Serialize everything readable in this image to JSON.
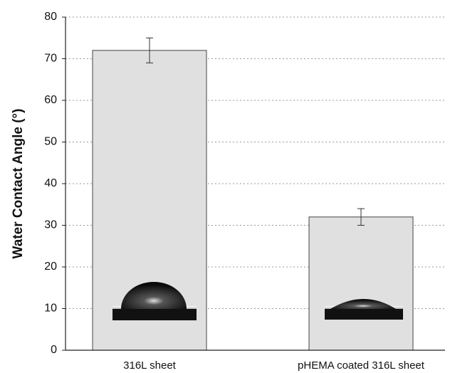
{
  "chart_data": {
    "type": "bar",
    "y_label": "Water Contact Angle (°)",
    "categories": [
      "316L sheet",
      "pHEMA coated 316L sheet"
    ],
    "values": [
      72,
      32
    ],
    "errors": [
      3,
      2
    ],
    "color": "#e0e0e0",
    "ylim": [
      0,
      80
    ],
    "yticks": [
      0,
      10,
      20,
      30,
      40,
      50,
      60,
      70,
      80
    ],
    "grid": true
  }
}
